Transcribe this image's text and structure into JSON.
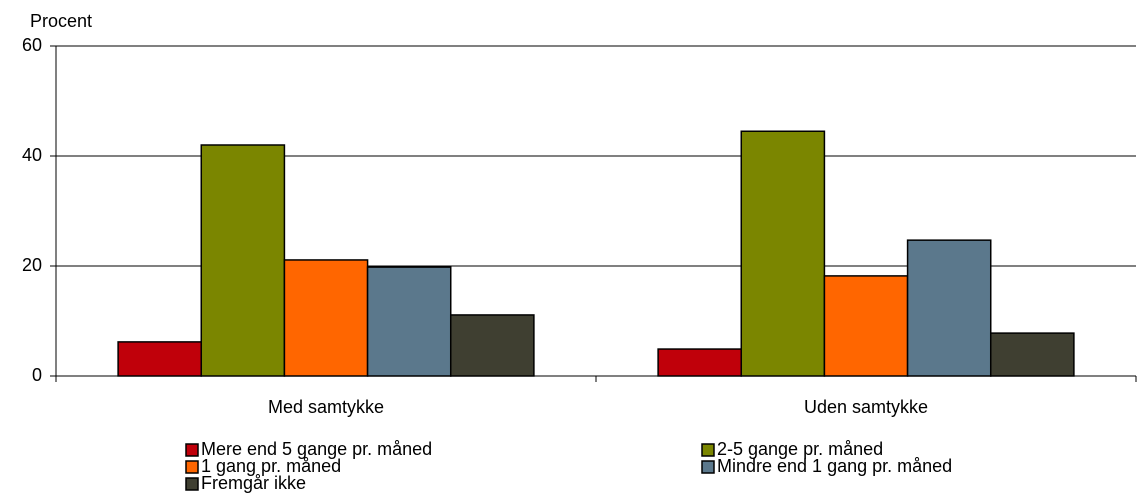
{
  "chart_data": {
    "type": "bar",
    "y_label": "Procent",
    "categories": [
      "Med samtykke",
      "Uden samtykke"
    ],
    "series": [
      {
        "name": "Mere end 5 gange pr. måned",
        "color": "#c0000a",
        "values": [
          6.2,
          4.9
        ]
      },
      {
        "name": "2-5 gange pr. måned",
        "color": "#7b8600",
        "values": [
          42,
          44.5
        ]
      },
      {
        "name": "1 gang pr. måned",
        "color": "#ff6600",
        "values": [
          21.1,
          18.2
        ]
      },
      {
        "name": "Mindre end 1 gang pr. måned",
        "color": "#5b788c",
        "values": [
          19.8,
          24.7
        ]
      },
      {
        "name": "Fremgår ikke",
        "color": "#3f3f31",
        "values": [
          11.1,
          7.8
        ]
      }
    ],
    "ylim": [
      0,
      60
    ],
    "yticks": [
      0,
      20,
      40,
      60
    ],
    "grid": true
  }
}
